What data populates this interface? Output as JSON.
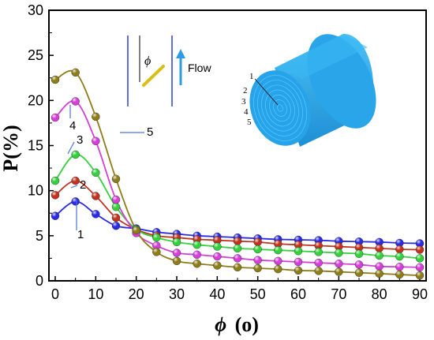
{
  "chart_data": {
    "type": "line",
    "xlabel_symbol": "ϕ",
    "xlabel_unit": "(o)",
    "ylabel": "P(%)",
    "xlim": [
      0,
      90
    ],
    "ylim": [
      0,
      30
    ],
    "xticks": [
      "0",
      "10",
      "20",
      "30",
      "40",
      "50",
      "60",
      "70",
      "80",
      "90"
    ],
    "yticks": [
      "0",
      "5",
      "10",
      "15",
      "20",
      "25",
      "30"
    ],
    "x": [
      0,
      5,
      10,
      15,
      20,
      25,
      30,
      35,
      40,
      45,
      50,
      55,
      60,
      65,
      70,
      75,
      80,
      85,
      90
    ],
    "series": [
      {
        "name": "1",
        "color": "#2a2ae6",
        "values": [
          7.2,
          8.8,
          7.4,
          6.1,
          5.8,
          5.4,
          5.2,
          5.0,
          4.9,
          4.8,
          4.7,
          4.6,
          4.55,
          4.5,
          4.4,
          4.35,
          4.3,
          4.2,
          4.15
        ]
      },
      {
        "name": "2",
        "color": "#c1331e",
        "values": [
          9.5,
          11.1,
          9.4,
          7.0,
          5.7,
          5.0,
          4.8,
          4.6,
          4.5,
          4.4,
          4.3,
          4.1,
          4.0,
          3.9,
          3.8,
          3.7,
          3.6,
          3.5,
          3.45
        ]
      },
      {
        "name": "3",
        "color": "#33d13c",
        "values": [
          11.1,
          14.0,
          12.0,
          8.2,
          5.7,
          4.8,
          4.3,
          4.0,
          3.8,
          3.6,
          3.5,
          3.4,
          3.3,
          3.2,
          3.1,
          3.0,
          2.8,
          2.7,
          2.5
        ]
      },
      {
        "name": "4",
        "color": "#d53ed8",
        "values": [
          18.1,
          19.9,
          15.5,
          9.0,
          5.3,
          3.9,
          3.1,
          2.9,
          2.7,
          2.5,
          2.3,
          2.2,
          2.1,
          2.0,
          1.9,
          1.8,
          1.6,
          1.55,
          1.5
        ]
      },
      {
        "name": "5",
        "color": "#8d7d16",
        "values": [
          22.3,
          23.1,
          18.2,
          11.3,
          5.6,
          3.2,
          2.2,
          1.9,
          1.7,
          1.5,
          1.4,
          1.3,
          1.15,
          1.1,
          1.0,
          0.9,
          0.8,
          0.7,
          0.6
        ]
      }
    ],
    "series_labels": [
      "1",
      "2",
      "3",
      "4",
      "5"
    ],
    "legend": "none"
  },
  "inset": {
    "phi_symbol": "ϕ",
    "flow_label": "Flow",
    "flow_color": "#2f9be3",
    "rod_color": "#d8c01a",
    "cylinder_color": "#30aef0",
    "cylinder_labels": [
      "1",
      "2",
      "3",
      "4",
      "5"
    ]
  }
}
